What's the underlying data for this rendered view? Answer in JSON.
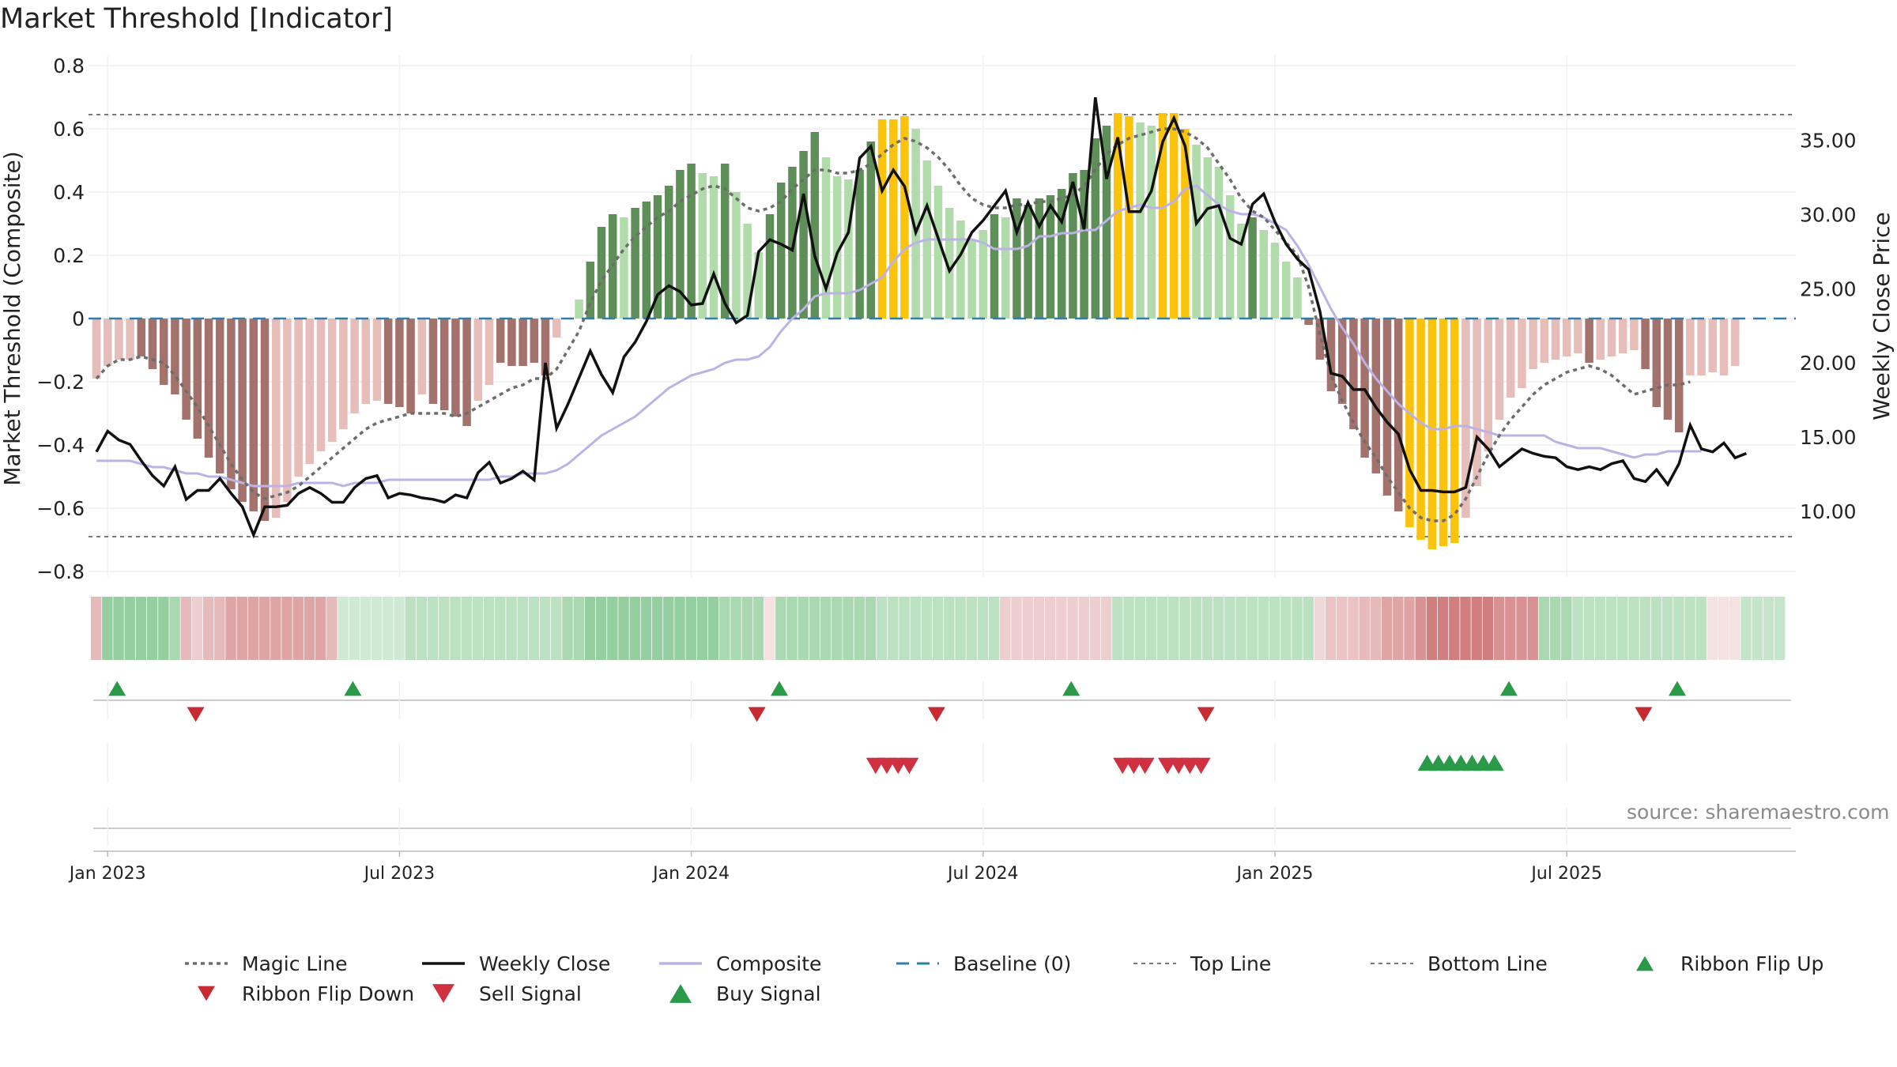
{
  "title": "Market Threshold [Indicator]",
  "source_note": "source: sharemaestro.com",
  "colors": {
    "strong_up": "#5e8f58",
    "weak_up": "#b2dbac",
    "strong_down": "#a3726c",
    "weak_down": "#e6bdb8",
    "extreme": "#fcc30c",
    "magic": "#6d6d6d",
    "close": "#111111",
    "composite": "#bdb2e6",
    "baseline": "#2f7faa",
    "guide": "#7a7a7a",
    "buy": "#2a9a48",
    "sell": "#d03040",
    "ribbon_flip_down": "#c82a32",
    "ribbon_flip_up": "#2a9a48"
  },
  "chart_data": {
    "type": "bar",
    "title": "Market Threshold [Indicator]",
    "ylabel_left": "Market Threshold (Composite)",
    "ylabel_right": "Weekly Close Price",
    "ylim_left": [
      -0.8,
      0.8
    ],
    "ylim_right": [
      5.94,
      40.04
    ],
    "left_ticks": [
      "0.8",
      "0.6",
      "0.4",
      "0.2",
      "0",
      "−0.2",
      "−0.4",
      "−0.6",
      "−0.8"
    ],
    "right_ticks": [
      "35.00",
      "30.00",
      "25.00",
      "20.00",
      "15.00",
      "10.00"
    ],
    "x_ticks": [
      {
        "label": "Jan 2023",
        "week": 1
      },
      {
        "label": "Jul 2023",
        "week": 27
      },
      {
        "label": "Jan 2024",
        "week": 53
      },
      {
        "label": "Jul 2024",
        "week": 79
      },
      {
        "label": "Jan 2025",
        "week": 105
      },
      {
        "label": "Jul 2025",
        "week": 131
      }
    ],
    "top_line": 0.645,
    "bottom_line": -0.69,
    "baseline": 0,
    "bars": [
      -0.19,
      -0.15,
      -0.13,
      -0.13,
      -0.12,
      -0.16,
      -0.21,
      -0.24,
      -0.32,
      -0.38,
      -0.44,
      -0.49,
      -0.54,
      -0.58,
      -0.61,
      -0.64,
      -0.63,
      -0.58,
      -0.5,
      -0.46,
      -0.42,
      -0.39,
      -0.35,
      -0.3,
      -0.27,
      -0.26,
      -0.27,
      -0.28,
      -0.3,
      -0.24,
      -0.27,
      -0.29,
      -0.31,
      -0.34,
      -0.26,
      -0.21,
      -0.14,
      -0.15,
      -0.15,
      -0.14,
      -0.18,
      -0.06,
      0.0,
      0.06,
      0.18,
      0.29,
      0.33,
      0.32,
      0.35,
      0.37,
      0.39,
      0.42,
      0.47,
      0.49,
      0.46,
      0.45,
      0.49,
      0.4,
      0.3,
      0.21,
      0.33,
      0.43,
      0.48,
      0.53,
      0.59,
      0.51,
      0.45,
      0.44,
      0.47,
      0.56,
      0.63,
      0.63,
      0.64,
      0.6,
      0.5,
      0.42,
      0.35,
      0.31,
      0.25,
      0.28,
      0.33,
      0.32,
      0.38,
      0.36,
      0.38,
      0.39,
      0.41,
      0.46,
      0.47,
      0.57,
      0.61,
      0.65,
      0.64,
      0.62,
      0.61,
      0.65,
      0.65,
      0.6,
      0.55,
      0.51,
      0.48,
      0.39,
      0.3,
      0.32,
      0.28,
      0.24,
      0.18,
      0.13,
      -0.02,
      -0.13,
      -0.23,
      -0.27,
      -0.35,
      -0.44,
      -0.49,
      -0.56,
      -0.61,
      -0.66,
      -0.7,
      -0.73,
      -0.72,
      -0.71,
      -0.63,
      -0.53,
      -0.42,
      -0.32,
      -0.25,
      -0.22,
      -0.16,
      -0.14,
      -0.13,
      -0.12,
      -0.11,
      -0.14,
      -0.13,
      -0.12,
      -0.11,
      -0.1,
      -0.16,
      -0.28,
      -0.32,
      -0.36,
      -0.18,
      -0.18,
      -0.17,
      -0.18,
      -0.15
    ],
    "bar_colors": [
      "weak_down",
      "weak_down",
      "weak_down",
      "weak_down",
      "strong_down",
      "strong_down",
      "strong_down",
      "strong_down",
      "strong_down",
      "strong_down",
      "strong_down",
      "strong_down",
      "strong_down",
      "strong_down",
      "strong_down",
      "strong_down",
      "weak_down",
      "weak_down",
      "weak_down",
      "weak_down",
      "weak_down",
      "weak_down",
      "weak_down",
      "weak_down",
      "weak_down",
      "weak_down",
      "strong_down",
      "strong_down",
      "strong_down",
      "weak_down",
      "strong_down",
      "strong_down",
      "strong_down",
      "strong_down",
      "weak_down",
      "weak_down",
      "strong_down",
      "strong_down",
      "strong_down",
      "strong_down",
      "strong_down",
      "weak_down",
      "weak_up",
      "weak_up",
      "strong_up",
      "strong_up",
      "strong_up",
      "weak_up",
      "strong_up",
      "strong_up",
      "strong_up",
      "strong_up",
      "strong_up",
      "strong_up",
      "weak_up",
      "weak_up",
      "strong_up",
      "weak_up",
      "weak_up",
      "weak_up",
      "strong_up",
      "strong_up",
      "strong_up",
      "strong_up",
      "strong_up",
      "weak_up",
      "weak_up",
      "weak_up",
      "strong_up",
      "strong_up",
      "extreme",
      "extreme",
      "extreme",
      "weak_up",
      "weak_up",
      "weak_up",
      "weak_up",
      "weak_up",
      "weak_up",
      "weak_up",
      "strong_up",
      "weak_up",
      "strong_up",
      "strong_up",
      "strong_up",
      "strong_up",
      "strong_up",
      "strong_up",
      "strong_up",
      "strong_up",
      "strong_up",
      "extreme",
      "extreme",
      "weak_up",
      "weak_up",
      "extreme",
      "extreme",
      "extreme",
      "weak_up",
      "weak_up",
      "weak_up",
      "weak_up",
      "weak_up",
      "strong_up",
      "weak_up",
      "weak_up",
      "weak_up",
      "weak_up",
      "strong_down",
      "strong_down",
      "strong_down",
      "strong_down",
      "strong_down",
      "strong_down",
      "strong_down",
      "strong_down",
      "strong_down",
      "extreme",
      "extreme",
      "extreme",
      "extreme",
      "extreme",
      "weak_down",
      "weak_down",
      "weak_down",
      "weak_down",
      "weak_down",
      "weak_down",
      "weak_down",
      "weak_down",
      "weak_down",
      "weak_down",
      "weak_down",
      "strong_down",
      "weak_down",
      "weak_down",
      "weak_down",
      "weak_down",
      "strong_down",
      "strong_down",
      "strong_down",
      "strong_down",
      "weak_down",
      "weak_down",
      "weak_down",
      "weak_down",
      "weak_down"
    ],
    "magic_line": [
      -0.19,
      -0.15,
      -0.13,
      -0.13,
      -0.12,
      -0.13,
      -0.14,
      -0.18,
      -0.23,
      -0.28,
      -0.34,
      -0.4,
      -0.46,
      -0.51,
      -0.55,
      -0.57,
      -0.56,
      -0.55,
      -0.53,
      -0.5,
      -0.47,
      -0.44,
      -0.41,
      -0.38,
      -0.35,
      -0.33,
      -0.32,
      -0.31,
      -0.3,
      -0.3,
      -0.3,
      -0.3,
      -0.31,
      -0.3,
      -0.28,
      -0.26,
      -0.24,
      -0.22,
      -0.21,
      -0.19,
      -0.19,
      -0.16,
      -0.1,
      -0.04,
      0.05,
      0.12,
      0.17,
      0.22,
      0.26,
      0.29,
      0.32,
      0.34,
      0.37,
      0.39,
      0.41,
      0.42,
      0.41,
      0.38,
      0.35,
      0.34,
      0.35,
      0.37,
      0.41,
      0.44,
      0.47,
      0.47,
      0.46,
      0.46,
      0.47,
      0.49,
      0.52,
      0.55,
      0.57,
      0.56,
      0.54,
      0.51,
      0.47,
      0.42,
      0.38,
      0.36,
      0.35,
      0.35,
      0.36,
      0.36,
      0.37,
      0.37,
      0.38,
      0.39,
      0.42,
      0.47,
      0.52,
      0.55,
      0.57,
      0.58,
      0.59,
      0.6,
      0.6,
      0.59,
      0.57,
      0.54,
      0.49,
      0.44,
      0.38,
      0.34,
      0.32,
      0.28,
      0.24,
      0.2,
      0.1,
      -0.05,
      -0.18,
      -0.26,
      -0.33,
      -0.39,
      -0.44,
      -0.5,
      -0.55,
      -0.6,
      -0.63,
      -0.64,
      -0.64,
      -0.62,
      -0.57,
      -0.5,
      -0.43,
      -0.37,
      -0.32,
      -0.28,
      -0.24,
      -0.21,
      -0.19,
      -0.17,
      -0.16,
      -0.15,
      -0.16,
      -0.18,
      -0.21,
      -0.24,
      -0.23,
      -0.22,
      -0.21,
      -0.21,
      -0.2
    ],
    "composite": [
      -0.45,
      -0.45,
      -0.45,
      -0.45,
      -0.46,
      -0.47,
      -0.47,
      -0.48,
      -0.49,
      -0.49,
      -0.5,
      -0.5,
      -0.51,
      -0.52,
      -0.53,
      -0.53,
      -0.53,
      -0.53,
      -0.52,
      -0.52,
      -0.52,
      -0.52,
      -0.53,
      -0.52,
      -0.52,
      -0.52,
      -0.51,
      -0.51,
      -0.51,
      -0.51,
      -0.51,
      -0.51,
      -0.51,
      -0.51,
      -0.51,
      -0.51,
      -0.5,
      -0.5,
      -0.49,
      -0.49,
      -0.49,
      -0.48,
      -0.46,
      -0.43,
      -0.4,
      -0.37,
      -0.35,
      -0.33,
      -0.31,
      -0.28,
      -0.25,
      -0.22,
      -0.2,
      -0.18,
      -0.17,
      -0.16,
      -0.14,
      -0.13,
      -0.13,
      -0.12,
      -0.09,
      -0.04,
      0.0,
      0.03,
      0.07,
      0.08,
      0.08,
      0.08,
      0.09,
      0.11,
      0.13,
      0.18,
      0.22,
      0.24,
      0.25,
      0.25,
      0.25,
      0.25,
      0.25,
      0.24,
      0.22,
      0.22,
      0.22,
      0.23,
      0.26,
      0.26,
      0.27,
      0.27,
      0.28,
      0.28,
      0.31,
      0.34,
      0.35,
      0.36,
      0.35,
      0.35,
      0.37,
      0.41,
      0.42,
      0.39,
      0.36,
      0.34,
      0.33,
      0.33,
      0.32,
      0.3,
      0.28,
      0.23,
      0.17,
      0.1,
      0.03,
      -0.03,
      -0.08,
      -0.14,
      -0.19,
      -0.23,
      -0.27,
      -0.3,
      -0.33,
      -0.35,
      -0.35,
      -0.34,
      -0.34,
      -0.35,
      -0.36,
      -0.37,
      -0.37,
      -0.37,
      -0.37,
      -0.37,
      -0.39,
      -0.4,
      -0.41,
      -0.41,
      -0.41,
      -0.42,
      -0.43,
      -0.44,
      -0.43,
      -0.43,
      -0.42,
      -0.42,
      -0.42,
      -0.42
    ],
    "weekly_close": [
      14.0,
      15.4,
      14.8,
      14.5,
      13.4,
      12.4,
      11.7,
      13.0,
      10.8,
      11.4,
      11.4,
      12.2,
      11.2,
      10.3,
      8.4,
      10.3,
      10.3,
      10.4,
      11.2,
      11.6,
      11.2,
      10.6,
      10.6,
      11.6,
      12.2,
      12.4,
      10.9,
      11.2,
      11.1,
      10.9,
      10.8,
      10.6,
      11.1,
      10.9,
      12.6,
      13.3,
      11.9,
      12.2,
      12.7,
      12.1,
      20.0,
      15.6,
      17.2,
      19.0,
      20.8,
      19.2,
      18.0,
      20.4,
      21.4,
      22.8,
      24.6,
      25.2,
      24.8,
      23.9,
      24.0,
      26.0,
      24.0,
      22.7,
      23.2,
      27.5,
      28.3,
      28.0,
      27.6,
      31.4,
      27.2,
      25.0,
      27.4,
      28.8,
      33.8,
      34.6,
      31.6,
      33.0,
      31.9,
      28.8,
      30.6,
      28.4,
      26.2,
      27.3,
      28.8,
      29.6,
      30.6,
      31.6,
      28.8,
      30.8,
      29.2,
      30.6,
      29.5,
      32.2,
      29.0,
      37.9,
      32.4,
      35.2,
      30.2,
      30.2,
      31.6,
      34.9,
      36.5,
      34.6,
      29.4,
      30.4,
      30.6,
      28.4,
      28.0,
      30.7,
      31.4,
      29.5,
      28.0,
      27.0,
      26.3,
      23.5,
      19.3,
      19.1,
      18.2,
      18.2,
      17.0,
      16.0,
      15.2,
      12.8,
      11.4,
      11.4,
      11.3,
      11.3,
      11.6,
      15.0,
      14.2,
      13.0,
      13.6,
      14.2,
      13.9,
      13.7,
      13.6,
      13.0,
      12.8,
      13.0,
      12.8,
      13.2,
      13.4,
      12.2,
      12.0,
      12.8,
      11.8,
      13.2,
      15.8,
      14.2,
      14.0,
      14.6,
      13.6,
      13.9
    ],
    "ribbon_scores": [
      0.35,
      0.55,
      0.55,
      0.55,
      0.55,
      0.55,
      0.55,
      0.45,
      0.35,
      0.25,
      0.35,
      0.35,
      0.45,
      0.45,
      0.45,
      0.45,
      0.45,
      0.45,
      0.45,
      0.45,
      0.45,
      0.35,
      0.25,
      0.25,
      0.25,
      0.25,
      0.25,
      0.25,
      0.35,
      0.35,
      0.35,
      0.35,
      0.35,
      0.35,
      0.35,
      0.35,
      0.35,
      0.35,
      0.35,
      0.35,
      0.35,
      0.35,
      0.45,
      0.45,
      0.55,
      0.55,
      0.55,
      0.55,
      0.55,
      0.55,
      0.55,
      0.55,
      0.55,
      0.55,
      0.55,
      0.55,
      0.45,
      0.45,
      0.45,
      0.45,
      0.15,
      0.45,
      0.45,
      0.45,
      0.45,
      0.45,
      0.45,
      0.45,
      0.45,
      0.45,
      0.35,
      0.35,
      0.35,
      0.35,
      0.35,
      0.35,
      0.35,
      0.35,
      0.35,
      0.35,
      0.35,
      0.25,
      0.25,
      0.25,
      0.25,
      0.25,
      0.25,
      0.25,
      0.25,
      0.25,
      0.25,
      0.35,
      0.35,
      0.35,
      0.35,
      0.35,
      0.35,
      0.35,
      0.35,
      0.35,
      0.35,
      0.35,
      0.35,
      0.35,
      0.35,
      0.35,
      0.35,
      0.35,
      0.35,
      0.2,
      0.3,
      0.3,
      0.3,
      0.35,
      0.35,
      0.45,
      0.45,
      0.45,
      0.55,
      0.65,
      0.65,
      0.65,
      0.65,
      0.65,
      0.65,
      0.55,
      0.55,
      0.55,
      0.55,
      0.45,
      0.45,
      0.45,
      0.35,
      0.35,
      0.35,
      0.35,
      0.35,
      0.35,
      0.35,
      0.35,
      0.35,
      0.35,
      0.35,
      0.35,
      0.15,
      0.15,
      0.15,
      0.3,
      0.3,
      0.3,
      0.3
    ],
    "ribbon_direction": [
      "down",
      "up",
      "up",
      "up",
      "up",
      "up",
      "up",
      "up",
      "down",
      "down",
      "down",
      "down",
      "down",
      "down",
      "down",
      "down",
      "down",
      "down",
      "down",
      "down",
      "down",
      "down",
      "up",
      "up",
      "up",
      "up",
      "up",
      "up",
      "up",
      "up",
      "up",
      "up",
      "up",
      "up",
      "up",
      "up",
      "up",
      "up",
      "up",
      "up",
      "up",
      "up",
      "up",
      "up",
      "up",
      "up",
      "up",
      "up",
      "up",
      "up",
      "up",
      "up",
      "up",
      "up",
      "up",
      "up",
      "up",
      "up",
      "up",
      "up",
      "down",
      "up",
      "up",
      "up",
      "up",
      "up",
      "up",
      "up",
      "up",
      "up",
      "up",
      "up",
      "up",
      "up",
      "up",
      "up",
      "up",
      "up",
      "up",
      "up",
      "up",
      "down",
      "down",
      "down",
      "down",
      "down",
      "down",
      "down",
      "down",
      "down",
      "down",
      "up",
      "up",
      "up",
      "up",
      "up",
      "up",
      "up",
      "up",
      "up",
      "up",
      "up",
      "up",
      "up",
      "up",
      "up",
      "up",
      "up",
      "up",
      "down",
      "down",
      "down",
      "down",
      "down",
      "down",
      "down",
      "down",
      "down",
      "down",
      "down",
      "down",
      "down",
      "down",
      "down",
      "down",
      "down",
      "down",
      "down",
      "down",
      "up",
      "up",
      "up",
      "up",
      "up",
      "up",
      "up",
      "up",
      "up",
      "up",
      "up",
      "up",
      "up",
      "up",
      "up",
      "down",
      "down",
      "down",
      "up",
      "up",
      "up",
      "up"
    ],
    "ribbon_flip_up": [
      1,
      22,
      60,
      86,
      125,
      140
    ],
    "ribbon_flip_down": [
      8,
      58,
      74,
      98,
      137
    ],
    "sell_signals": [
      69,
      70,
      71,
      72,
      91,
      92,
      93,
      95,
      96,
      97,
      98
    ],
    "buy_signals": [
      118,
      119,
      120,
      121,
      122,
      123,
      124
    ]
  },
  "legend": [
    {
      "label": "Magic Line",
      "style": "dotted",
      "color": "magic"
    },
    {
      "label": "Weekly Close",
      "style": "solid",
      "color": "close"
    },
    {
      "label": "Composite",
      "style": "solid",
      "color": "composite"
    },
    {
      "label": "Baseline (0)",
      "style": "dashed",
      "color": "baseline"
    },
    {
      "label": "Top Line",
      "style": "dotted-thin",
      "color": "guide"
    },
    {
      "label": "Bottom Line",
      "style": "dotted-thin",
      "color": "guide"
    },
    {
      "label": "Ribbon Flip Up",
      "style": "tri-up",
      "color": "ribbon_flip_up"
    },
    {
      "label": "Ribbon Flip Down",
      "style": "tri-down",
      "color": "ribbon_flip_down"
    },
    {
      "label": "Sell Signal",
      "style": "tri-down-big",
      "color": "sell"
    },
    {
      "label": "Buy Signal",
      "style": "tri-up-big",
      "color": "buy"
    }
  ]
}
